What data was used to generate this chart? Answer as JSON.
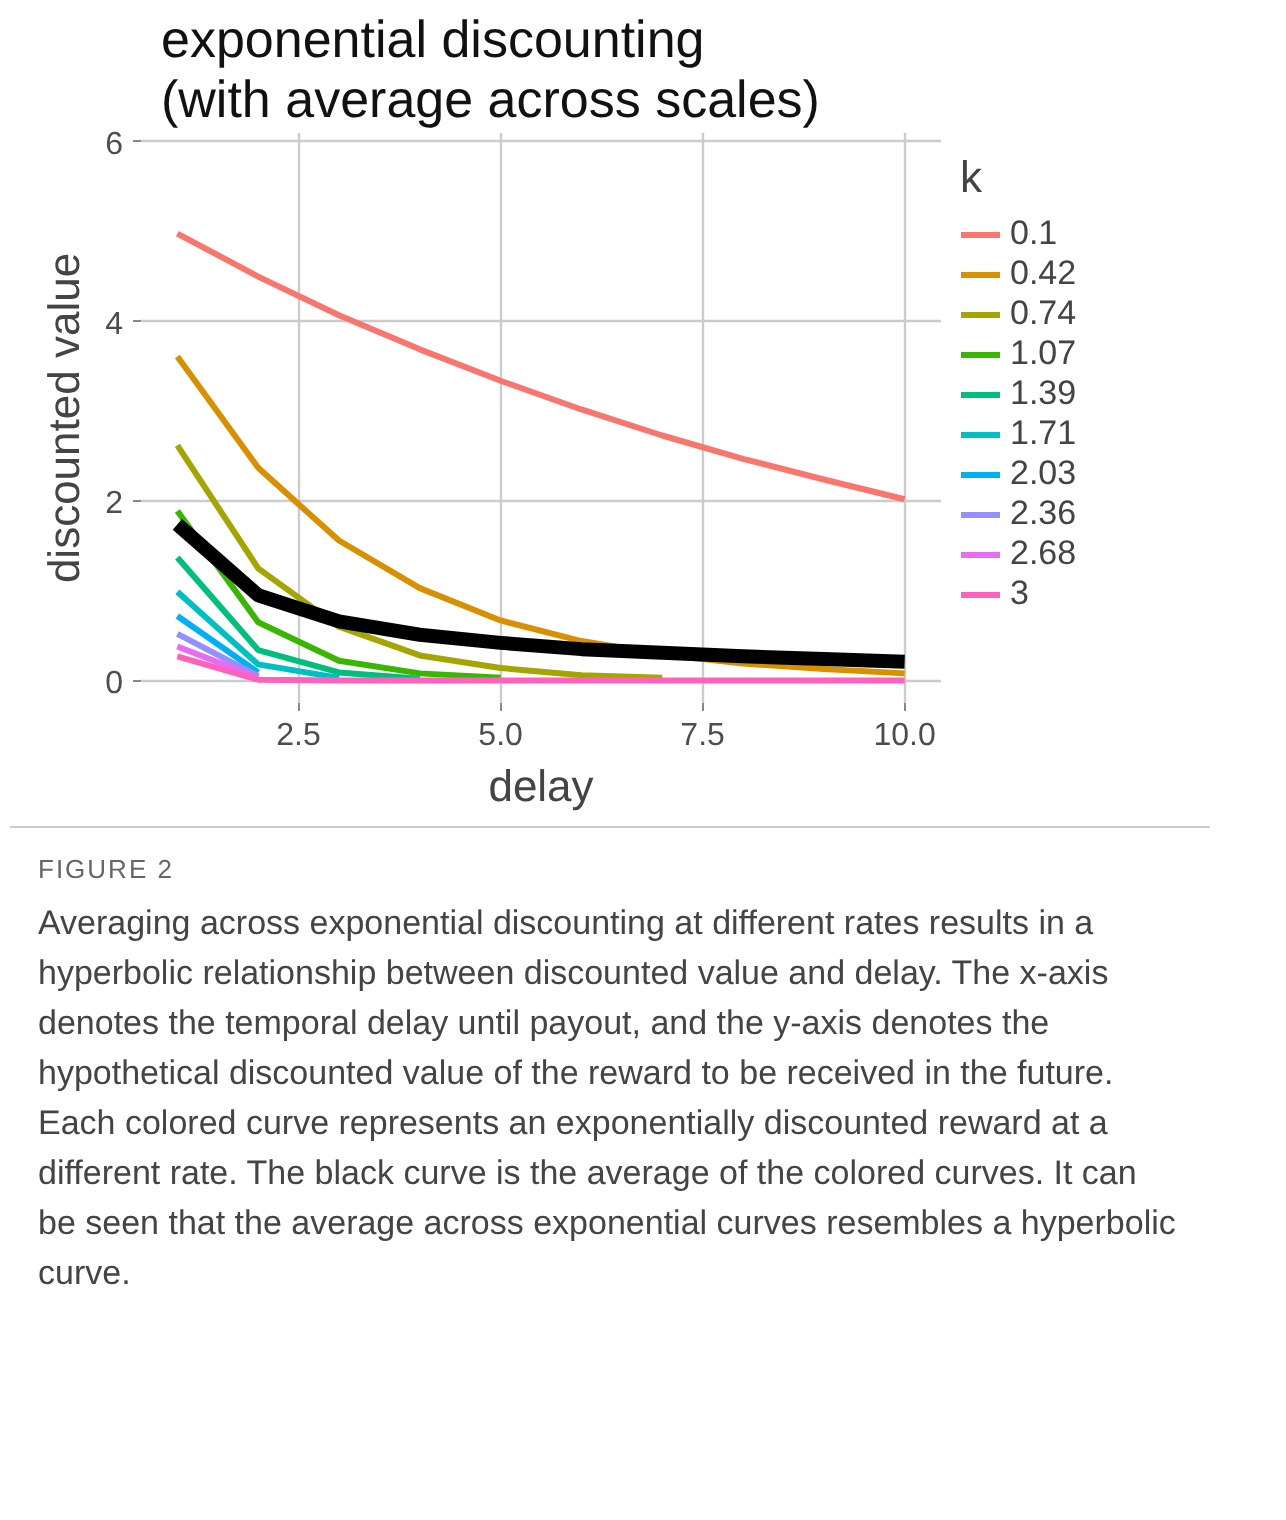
{
  "chart_data": {
    "type": "line",
    "title": "exponential discounting\n(with average across scales)",
    "xlabel": "delay",
    "ylabel": "discounted value",
    "legend_title": "k",
    "x": [
      1,
      2,
      3,
      4,
      5,
      6,
      7,
      8,
      9,
      10
    ],
    "series": [
      {
        "name": "0.1",
        "color": "#f8766d",
        "values": [
          4.98,
          4.5,
          4.07,
          3.69,
          3.34,
          3.02,
          2.73,
          2.47,
          2.24,
          2.02
        ]
      },
      {
        "name": "0.42",
        "color": "#d89000",
        "values": [
          3.61,
          2.37,
          1.56,
          1.03,
          0.67,
          0.44,
          0.29,
          0.19,
          0.13,
          0.08
        ]
      },
      {
        "name": "0.74",
        "color": "#a3a500",
        "values": [
          2.62,
          1.25,
          0.6,
          0.28,
          0.14,
          0.06,
          0.03,
          null,
          null,
          null
        ]
      },
      {
        "name": "1.07",
        "color": "#39b600",
        "values": [
          1.89,
          0.65,
          0.22,
          0.08,
          0.03,
          null,
          null,
          null,
          null,
          null
        ]
      },
      {
        "name": "1.39",
        "color": "#00bf7d",
        "values": [
          1.37,
          0.34,
          0.09,
          0.02,
          null,
          null,
          null,
          null,
          null,
          null
        ]
      },
      {
        "name": "1.71",
        "color": "#00bfc4",
        "values": [
          0.99,
          0.18,
          0.03,
          null,
          null,
          null,
          null,
          null,
          null,
          null
        ]
      },
      {
        "name": "2.03",
        "color": "#00b0f6",
        "values": [
          0.72,
          0.09,
          null,
          null,
          null,
          null,
          null,
          null,
          null,
          null
        ]
      },
      {
        "name": "2.36",
        "color": "#9590ff",
        "values": [
          0.52,
          0.05,
          null,
          null,
          null,
          null,
          null,
          null,
          null,
          null
        ]
      },
      {
        "name": "2.68",
        "color": "#e76bf3",
        "values": [
          0.38,
          0.03,
          null,
          null,
          null,
          null,
          null,
          null,
          null,
          null
        ]
      },
      {
        "name": "3",
        "color": "#ff62bc",
        "values": [
          0.27,
          0.01,
          0.0,
          0.0,
          0.0,
          0.0,
          0.0,
          0.0,
          0.0,
          0.0
        ]
      },
      {
        "color": "#000000",
        "values": [
          1.74,
          0.95,
          0.66,
          0.51,
          0.42,
          0.35,
          0.31,
          0.27,
          0.24,
          0.21
        ]
      }
    ],
    "xlim": [
      0.55,
      10.45
    ],
    "xticks": [
      2.5,
      {
        "value": 5,
        "label": "5.0"
      },
      7.5,
      {
        "value": 10,
        "label": "10.0"
      }
    ],
    "ylim": [
      -0.25,
      6.1
    ],
    "yticks": [
      0,
      2,
      4,
      6
    ],
    "grid": true,
    "legend": "right",
    "line_style": "solid",
    "annotations": [
      "FIGURE 2",
      "Averaging across exponential discounting at different rates results in a hyperbolic relationship between discounted value and delay. The x-axis denotes the temporal delay until payout, and the y-axis denotes the hypothetical discounted value of the reward to be received in the future. Each colored curve represents an exponentially discounted reward at a different rate. The black curve is the average of the colored curves. It can be seen that the average across exponential curves resembles a hyperbolic curve."
    ]
  }
}
